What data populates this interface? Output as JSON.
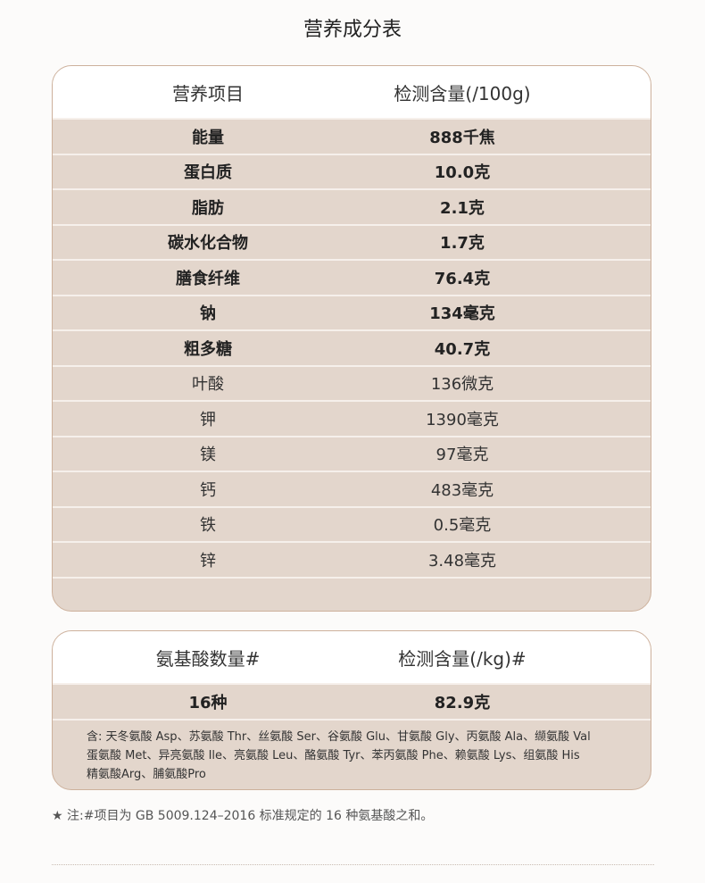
{
  "title": "营养成分表",
  "nutrition": {
    "header": [
      "营养项目",
      "检测含量(/100g)"
    ],
    "rows": [
      {
        "item": "能量",
        "value": "888千焦",
        "bold": true
      },
      {
        "item": "蛋白质",
        "value": "10.0克",
        "bold": true
      },
      {
        "item": "脂肪",
        "value": "2.1克",
        "bold": true
      },
      {
        "item": "碳水化合物",
        "value": "1.7克",
        "bold": true
      },
      {
        "item": "膳食纤维",
        "value": "76.4克",
        "bold": true
      },
      {
        "item": "钠",
        "value": "134毫克",
        "bold": true
      },
      {
        "item": "粗多糖",
        "value": "40.7克",
        "bold": true
      },
      {
        "item": "叶酸",
        "value": "136微克",
        "bold": false
      },
      {
        "item": "钾",
        "value": "1390毫克",
        "bold": false
      },
      {
        "item": "镁",
        "value": "97毫克",
        "bold": false
      },
      {
        "item": "钙",
        "value": "483毫克",
        "bold": false
      },
      {
        "item": "铁",
        "value": "0.5毫克",
        "bold": false
      },
      {
        "item": "锌",
        "value": "3.48毫克",
        "bold": false
      }
    ]
  },
  "amino": {
    "header": [
      "氨基酸数量#",
      "检测含量(/kg)#"
    ],
    "row": {
      "item": "16种",
      "value": "82.9克"
    },
    "notes": [
      "含: 天冬氨酸 Asp、苏氨酸 Thr、丝氨酸 Ser、谷氨酸 Glu、甘氨酸 Gly、丙氨酸 Ala、缬氨酸 Val",
      "蛋氨酸 Met、异亮氨酸 Ile、亮氨酸 Leu、酪氨酸 Tyr、苯丙氨酸 Phe、赖氨酸 Lys、组氨酸 His",
      "精氨酸Arg、脯氨酸Pro"
    ]
  },
  "footnote": "★ 注:#项目为 GB 5009.124–2016 标准规定的 16 种氨基酸之和。"
}
